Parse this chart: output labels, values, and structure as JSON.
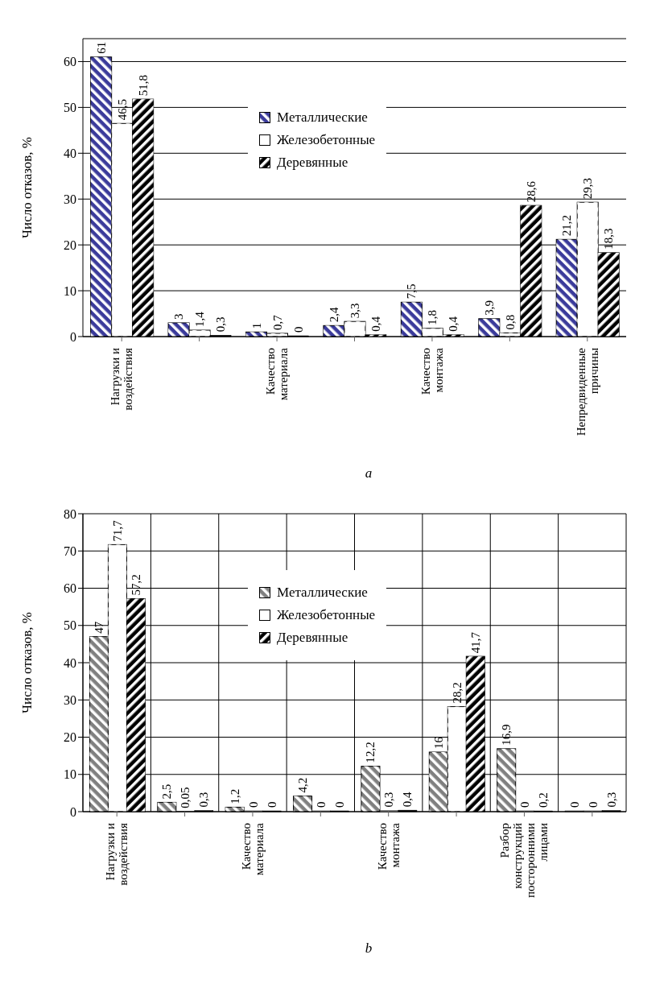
{
  "chart_data": [
    {
      "type": "bar",
      "categories": [
        "Нагрузки и воздействия",
        null,
        "Качество материала",
        null,
        "Качество монтажа",
        null,
        "Непредвиденные причины"
      ],
      "series": [
        {
          "name": "Металлические",
          "color": "#3b3b9b",
          "values": [
            61,
            3,
            1,
            2.4,
            7.5,
            3.9,
            21.2
          ],
          "value_labels": [
            "61",
            "3",
            "1",
            "2,4",
            "7,5",
            "3,9",
            "21,2"
          ]
        },
        {
          "name": "Железобетонные",
          "color": "#ffffff",
          "values": [
            46.5,
            1.4,
            0.7,
            3.3,
            1.8,
            0.8,
            29.3
          ],
          "value_labels": [
            "46,5",
            "1,4",
            "0,7",
            "3,3",
            "1,8",
            "0,8",
            "29,3"
          ]
        },
        {
          "name": "Деревянные",
          "color": "#000000",
          "values": [
            51.8,
            0.3,
            0,
            0.4,
            0.4,
            28.6,
            18.3
          ],
          "value_labels": [
            "51,8",
            "0,3",
            "0",
            "0,4",
            "0,4",
            "28,6",
            "18,3"
          ]
        }
      ],
      "ylabel": "Число отказов, %",
      "ylim": [
        0,
        65
      ],
      "yticks": [
        0,
        10,
        20,
        30,
        40,
        50,
        60
      ],
      "grid": "y",
      "legend": "top",
      "annotations": [
        "a"
      ]
    },
    {
      "type": "bar",
      "categories": [
        "Нагрузки и воздействия",
        null,
        "Качество материала",
        null,
        "Качество монтажа",
        null,
        "Разбор конструкций посторонними лицами",
        null
      ],
      "series": [
        {
          "name": "Металлические",
          "color": "#808080",
          "values": [
            47,
            2.5,
            1.2,
            4.2,
            12.2,
            16,
            16.9,
            0
          ],
          "value_labels": [
            "47",
            "2,5",
            "1,2",
            "4,2",
            "12,2",
            "16",
            "16,9",
            "0"
          ]
        },
        {
          "name": "Железобетонные",
          "color": "#ffffff",
          "values": [
            71.7,
            0.05,
            0,
            0,
            0.3,
            28.2,
            0,
            0
          ],
          "value_labels": [
            "71,7",
            "0,05",
            "0",
            "0",
            "0,3",
            "28,2",
            "0",
            "0"
          ]
        },
        {
          "name": "Деревянные",
          "color": "#000000",
          "values": [
            57.2,
            0.3,
            0,
            0,
            0.4,
            41.7,
            0.2,
            0.3
          ],
          "value_labels": [
            "57,2",
            "0,3",
            "0",
            "0",
            "0,4",
            "41,7",
            "0,2",
            "0,3"
          ]
        }
      ],
      "ylabel": "Число отказов, %",
      "ylim": [
        0,
        80
      ],
      "yticks": [
        0,
        10,
        20,
        30,
        40,
        50,
        60,
        70,
        80
      ],
      "grid": true,
      "legend": "top",
      "annotations": [
        "b"
      ]
    }
  ]
}
